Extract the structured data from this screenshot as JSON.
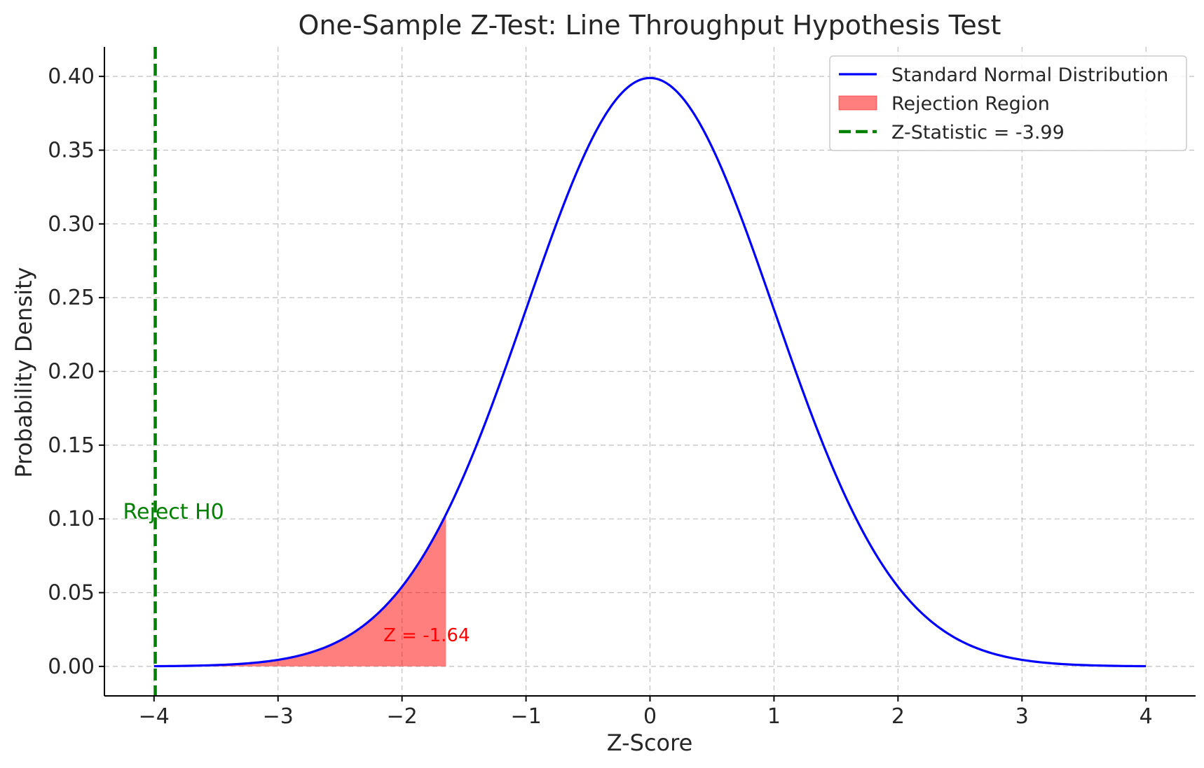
{
  "chart_data": {
    "type": "line",
    "title": "One-Sample Z-Test: Line Throughput Hypothesis Test",
    "xlabel": "Z-Score",
    "ylabel": "Probability Density",
    "xlim": [
      -4.4,
      4.4
    ],
    "ylim": [
      -0.02,
      0.42
    ],
    "x_ticks": [
      -4,
      -3,
      -2,
      -1,
      0,
      1,
      2,
      3,
      4
    ],
    "x_tick_labels": [
      "−4",
      "−3",
      "−2",
      "−1",
      "0",
      "1",
      "2",
      "3",
      "4"
    ],
    "y_ticks": [
      0.0,
      0.05,
      0.1,
      0.15,
      0.2,
      0.25,
      0.3,
      0.35,
      0.4
    ],
    "y_tick_labels": [
      "0.00",
      "0.05",
      "0.10",
      "0.15",
      "0.20",
      "0.25",
      "0.30",
      "0.35",
      "0.40"
    ],
    "grid": true,
    "legend_position": "top-right",
    "series": [
      {
        "name": "Standard Normal Distribution",
        "kind": "line",
        "color": "#0000ff",
        "x": [
          -4.0,
          -3.5,
          -3.0,
          -2.5,
          -2.0,
          -1.645,
          -1.5,
          -1.0,
          -0.5,
          0.0,
          0.5,
          1.0,
          1.5,
          2.0,
          2.5,
          3.0,
          3.5,
          4.0
        ],
        "y": [
          0.0001,
          0.0009,
          0.0044,
          0.0175,
          0.054,
          0.1031,
          0.1295,
          0.242,
          0.3521,
          0.3989,
          0.3521,
          0.242,
          0.1295,
          0.054,
          0.0175,
          0.0044,
          0.0009,
          0.0001
        ]
      },
      {
        "name": "Rejection Region",
        "kind": "area",
        "color": "#ff0000",
        "x_range": [
          -4.0,
          -1.645
        ]
      },
      {
        "name": "Z-Statistic = -3.99",
        "kind": "vline",
        "color": "#008000",
        "x": -3.99
      }
    ],
    "annotations": [
      {
        "text": "Z = -1.64",
        "x": -2.15,
        "y": 0.017,
        "color": "#ff0000"
      },
      {
        "text": "Reject H0",
        "x": -4.25,
        "y": 0.1,
        "color": "#008000"
      }
    ]
  }
}
